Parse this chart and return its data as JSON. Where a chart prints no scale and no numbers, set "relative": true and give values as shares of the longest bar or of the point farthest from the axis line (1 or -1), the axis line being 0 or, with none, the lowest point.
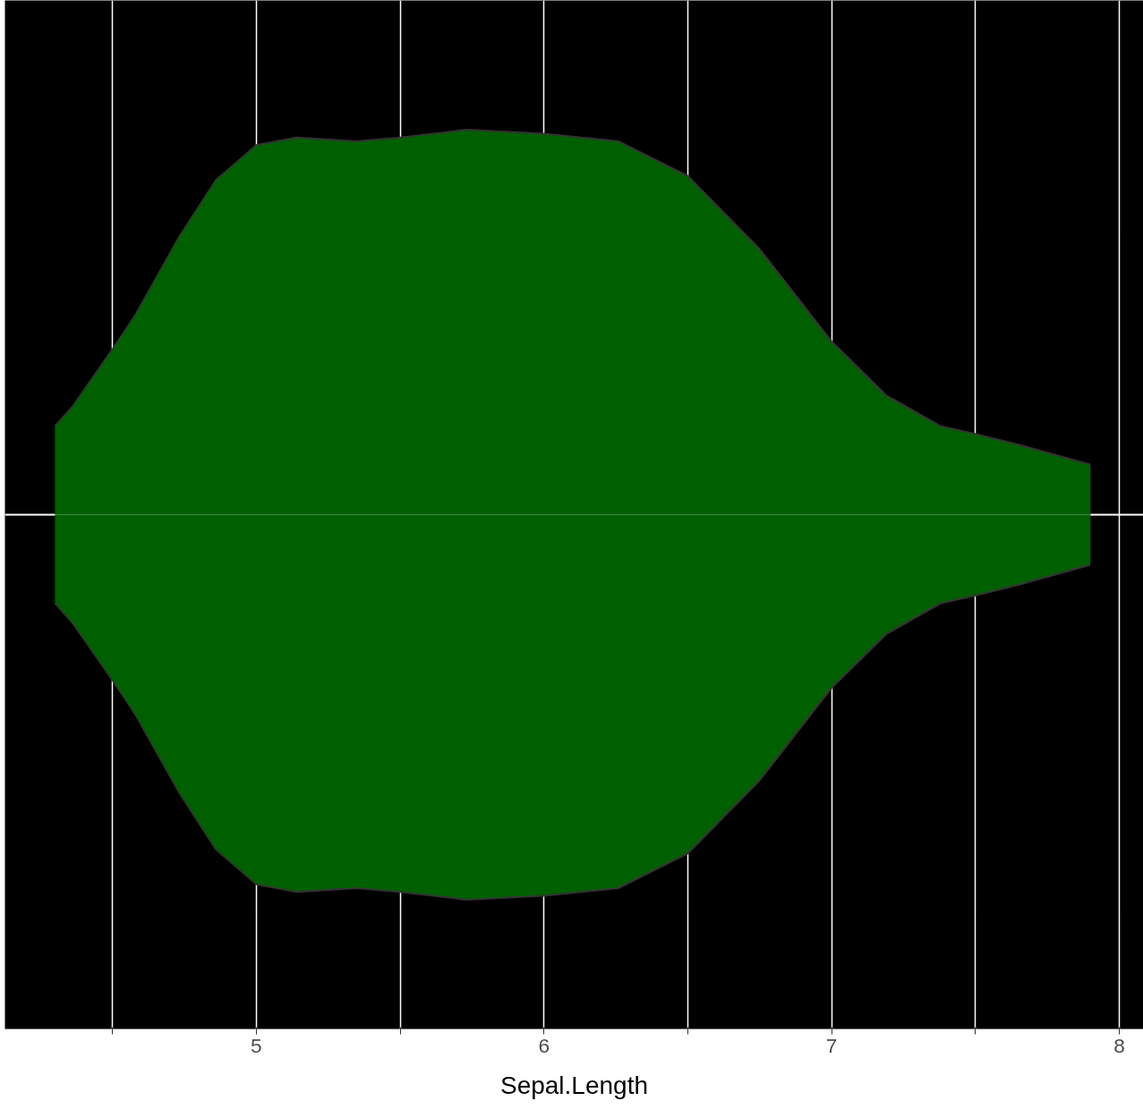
{
  "chart_data": {
    "type": "area",
    "xlabel": "Sepal.Length",
    "relative": true,
    "tick_labels": "x",
    "grid": true,
    "x": [
      4.3,
      4.36,
      4.5,
      4.58,
      4.73,
      4.86,
      5.0,
      5.14,
      5.35,
      5.5,
      5.73,
      6.0,
      6.26,
      6.5,
      6.75,
      7.0,
      7.19,
      7.38,
      7.5,
      7.66,
      7.9
    ],
    "xlim": [
      4.126,
      8.084
    ],
    "xticks": [
      {
        "value": 4.5,
        "label": null
      },
      5,
      {
        "value": 5.5,
        "label": null
      },
      6,
      {
        "value": 6.5,
        "label": null
      },
      7,
      {
        "value": 7.5,
        "label": null
      },
      8
    ],
    "series": [
      {
        "color": "#006000",
        "values": [
          0.23,
          0.28,
          0.43,
          0.52,
          0.72,
          0.87,
          0.96,
          0.98,
          0.97,
          0.98,
          1.0,
          0.99,
          0.97,
          0.88,
          0.69,
          0.45,
          0.31,
          0.23,
          0.21,
          0.18,
          0.13
        ]
      },
      {
        "color": "#006000",
        "values": [
          -0.23,
          -0.28,
          -0.43,
          -0.52,
          -0.72,
          -0.87,
          -0.96,
          -0.98,
          -0.97,
          -0.98,
          -1.0,
          -0.99,
          -0.97,
          -0.88,
          -0.69,
          -0.45,
          -0.31,
          -0.23,
          -0.21,
          -0.18,
          -0.13
        ]
      }
    ]
  }
}
